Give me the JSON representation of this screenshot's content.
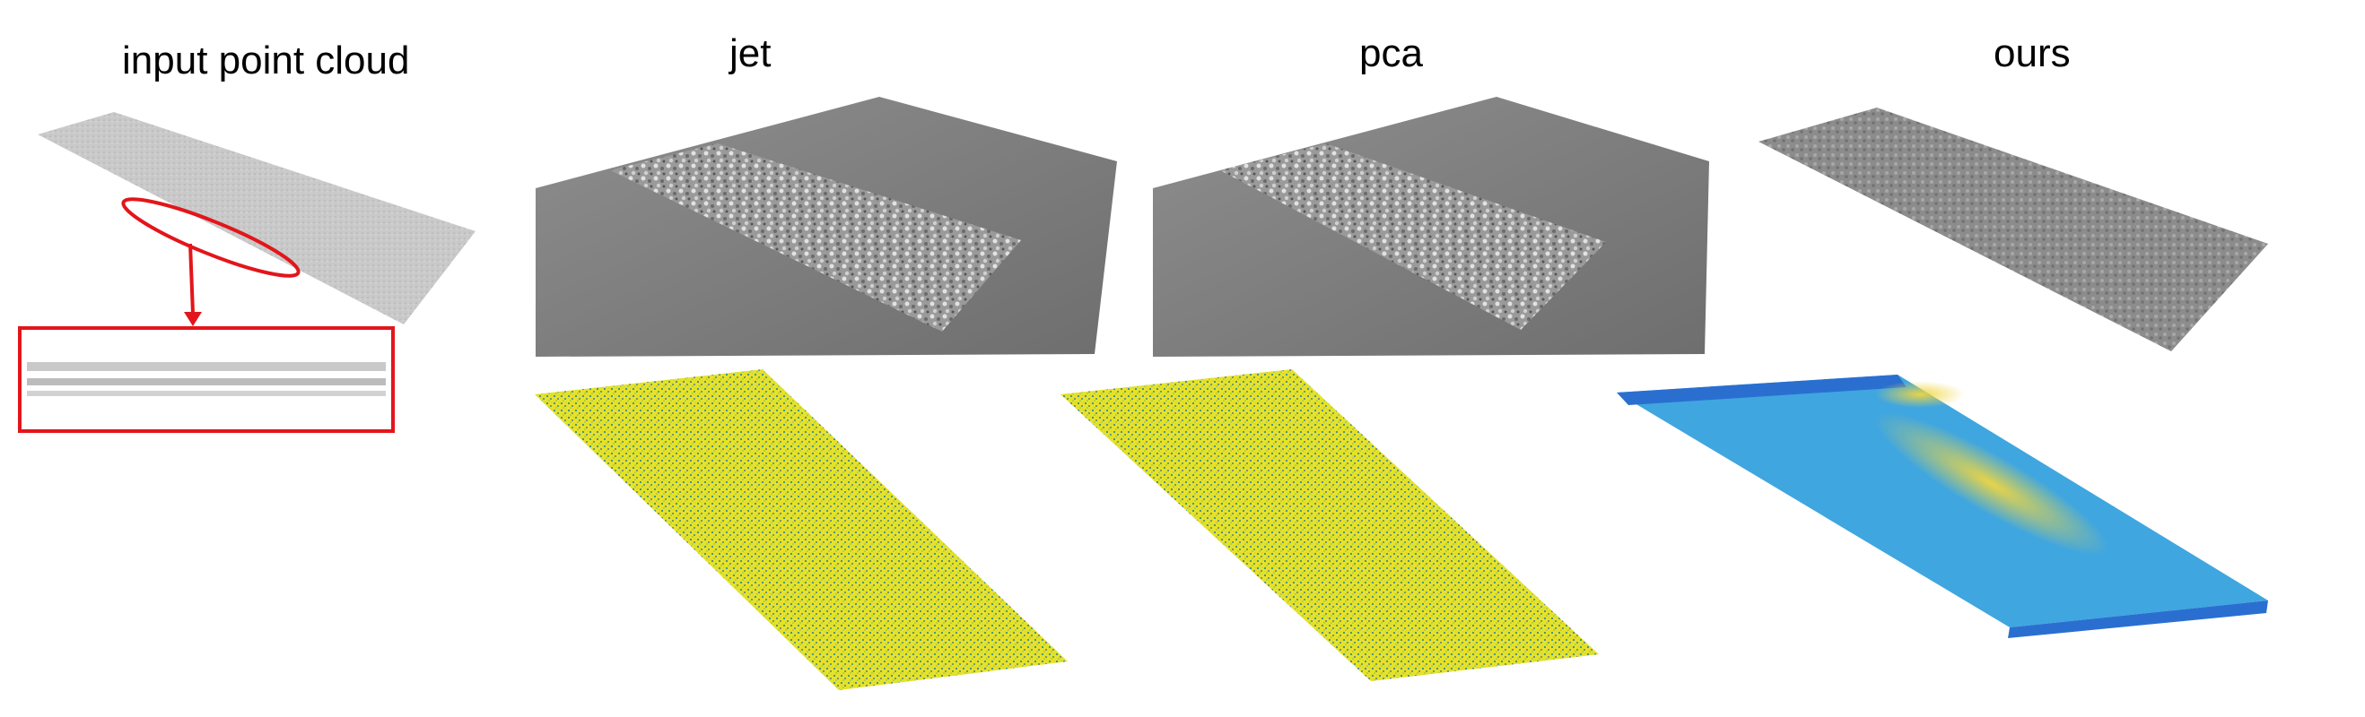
{
  "columns": {
    "input": "input point cloud",
    "jet": "jet",
    "pca": "pca",
    "ours": "ours"
  },
  "colors": {
    "highlight": "#e3151b",
    "point_cloud": "#c8c8c8",
    "surface": "#8a8a8a",
    "error_high": "#e6e22a",
    "error_low": "#3a7bd5"
  }
}
